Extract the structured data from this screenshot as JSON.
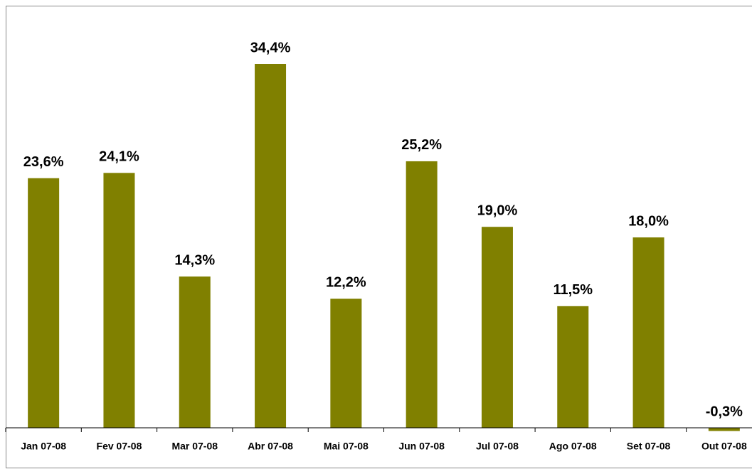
{
  "chart_data": {
    "type": "bar",
    "categories": [
      "Jan 07-08",
      "Fev 07-08",
      "Mar 07-08",
      "Abr 07-08",
      "Mai 07-08",
      "Jun 07-08",
      "Jul 07-08",
      "Ago 07-08",
      "Set 07-08",
      "Out 07-08"
    ],
    "values": [
      23.6,
      24.1,
      14.3,
      34.4,
      12.2,
      25.2,
      19.0,
      11.5,
      18.0,
      -0.3
    ],
    "value_labels": [
      "23,6%",
      "24,1%",
      "14,3%",
      "34,4%",
      "12,2%",
      "25,2%",
      "19,0%",
      "11,5%",
      "18,0%",
      "-0,3%"
    ],
    "color": "#808000"
  }
}
